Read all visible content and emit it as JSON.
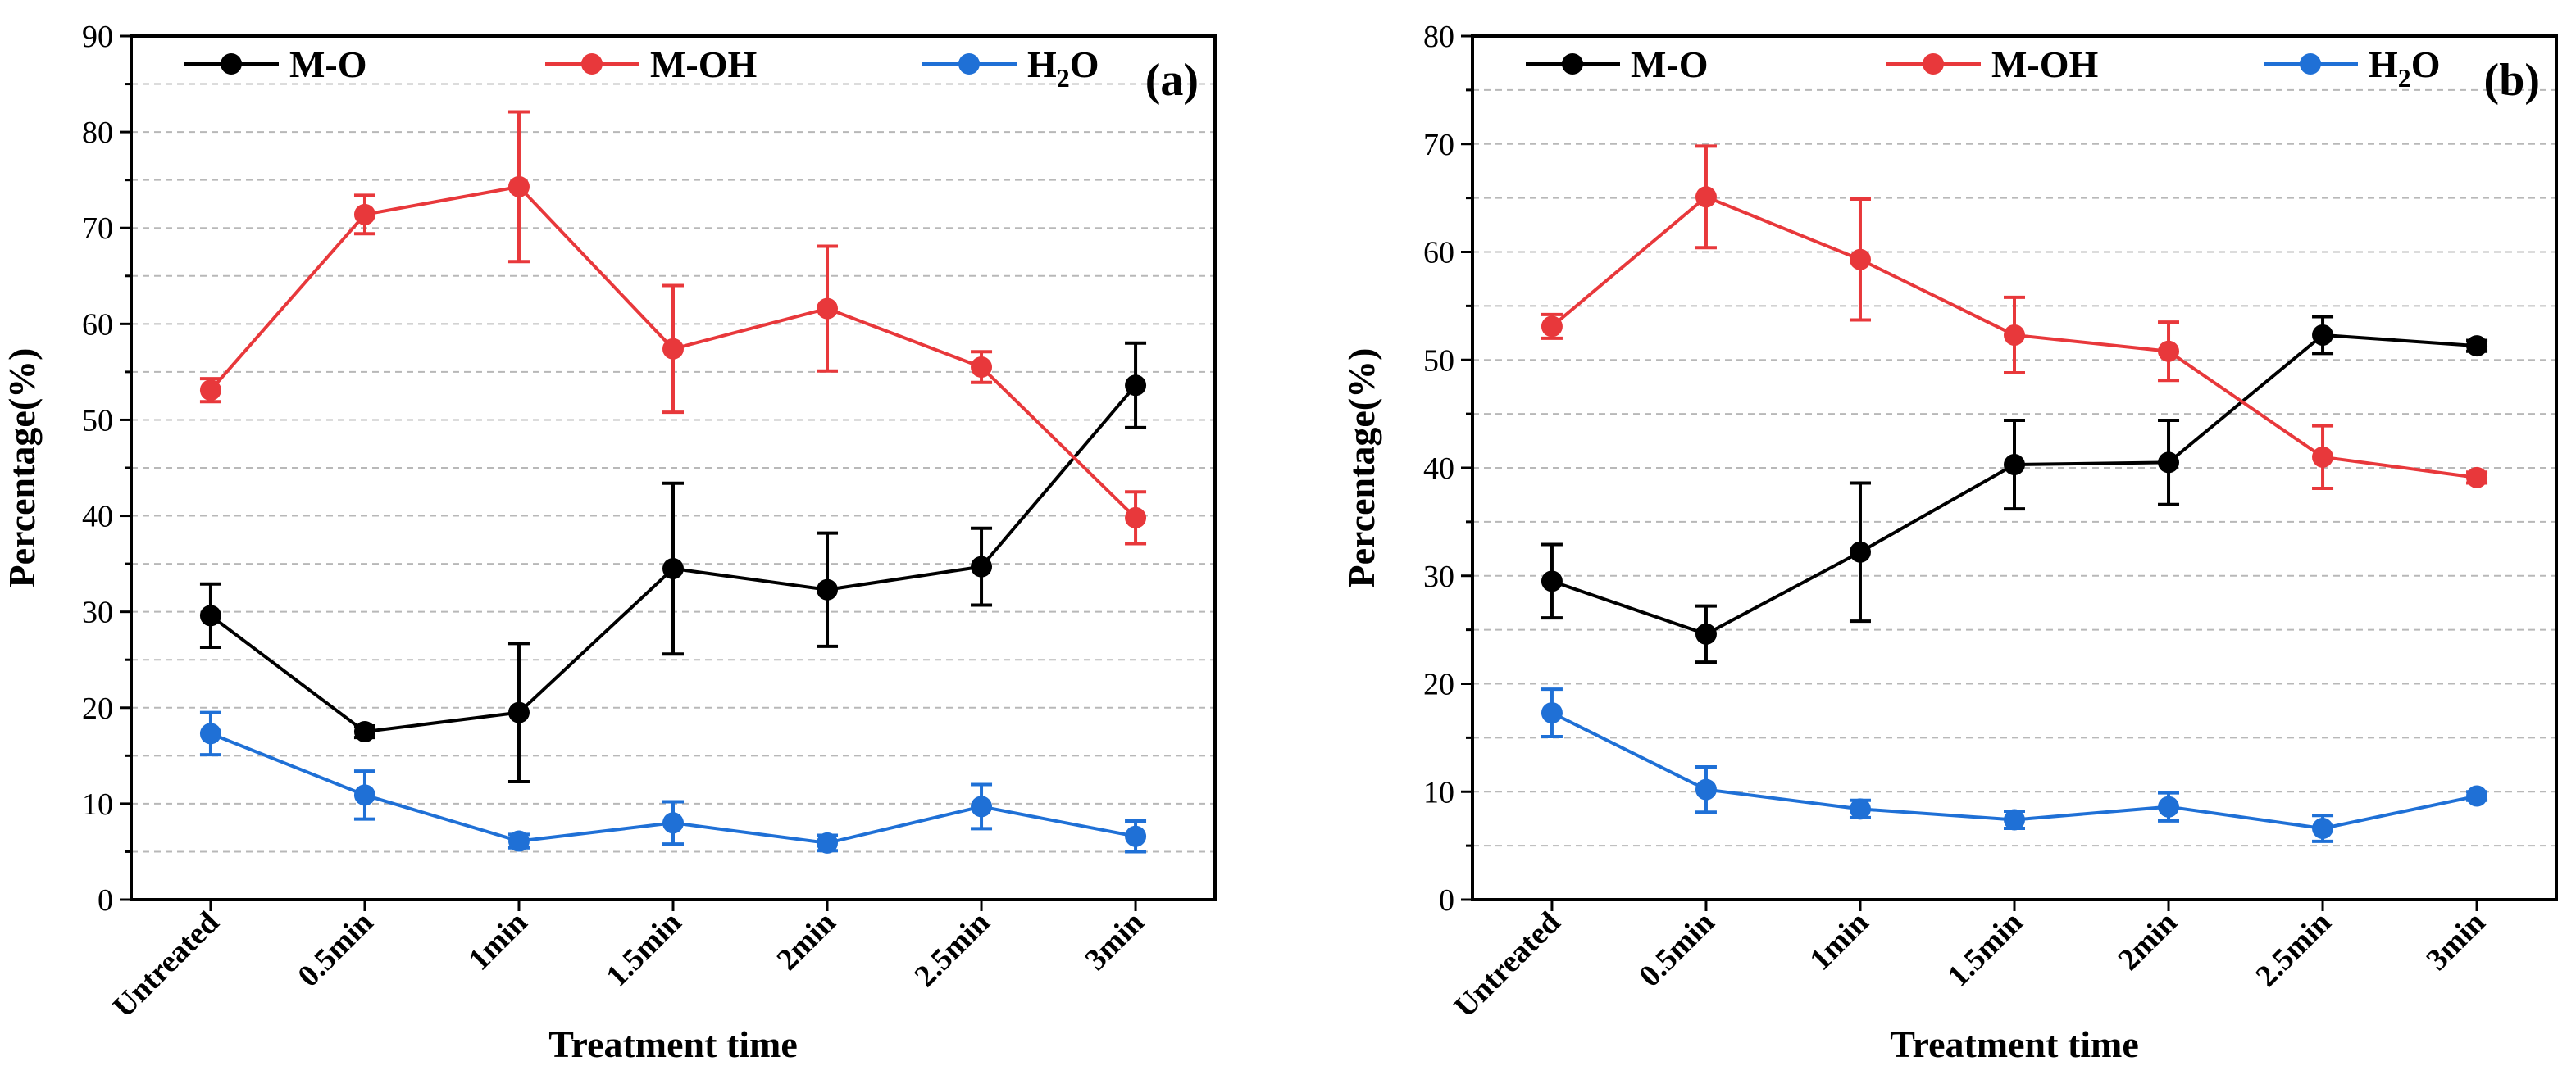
{
  "chart_data": [
    {
      "type": "line",
      "panel_label": "(a)",
      "categories": [
        "Untreated",
        "0.5min",
        "1min",
        "1.5min",
        "2min",
        "2.5min",
        "3min"
      ],
      "xlabel": "Treatment time",
      "ylabel": "Percentage(%)",
      "ylim": [
        0,
        90
      ],
      "yticks": [
        0,
        10,
        20,
        30,
        40,
        50,
        60,
        70,
        80,
        90
      ],
      "ytick_labels": [
        "0",
        "10",
        "20",
        "30",
        "40",
        "50",
        "60",
        "70",
        "80",
        "90"
      ],
      "grid": true,
      "legend_position": "top",
      "series": [
        {
          "name": "M-O",
          "color": "#000000",
          "values": [
            29.6,
            17.5,
            19.5,
            34.5,
            32.3,
            34.7,
            53.6
          ],
          "errors": [
            3.3,
            0.6,
            7.2,
            8.9,
            5.9,
            4.0,
            4.4
          ]
        },
        {
          "name": "M-OH",
          "color": "#e8383b",
          "values": [
            53.1,
            71.4,
            74.3,
            57.4,
            61.6,
            55.5,
            39.8
          ],
          "errors": [
            1.2,
            2.0,
            7.8,
            6.6,
            6.5,
            1.6,
            2.7
          ]
        },
        {
          "name": "H2O",
          "color": "#1f70d6",
          "values": [
            17.3,
            10.9,
            6.1,
            8.0,
            5.9,
            9.7,
            6.6
          ],
          "errors": [
            2.2,
            2.5,
            0.7,
            2.2,
            0.8,
            2.3,
            1.6
          ]
        }
      ]
    },
    {
      "type": "line",
      "panel_label": "(b)",
      "categories": [
        "Untreated",
        "0.5min",
        "1min",
        "1.5min",
        "2min",
        "2.5min",
        "3min"
      ],
      "xlabel": "Treatment time",
      "ylabel": "Percentage(%)",
      "ylim": [
        0,
        80
      ],
      "yticks": [
        0,
        10,
        20,
        30,
        40,
        50,
        60,
        70,
        80
      ],
      "ytick_labels": [
        "0",
        "10",
        "20",
        "30",
        "40",
        "50",
        "60",
        "70",
        "80"
      ],
      "grid": true,
      "legend_position": "top",
      "series": [
        {
          "name": "M-O",
          "color": "#000000",
          "values": [
            29.5,
            24.6,
            32.2,
            40.3,
            40.5,
            52.3,
            51.3
          ],
          "errors": [
            3.4,
            2.6,
            6.4,
            4.1,
            3.9,
            1.7,
            0.5
          ]
        },
        {
          "name": "M-OH",
          "color": "#e8383b",
          "values": [
            53.1,
            65.1,
            59.3,
            52.3,
            50.8,
            41.0,
            39.1
          ],
          "errors": [
            1.1,
            4.7,
            5.6,
            3.5,
            2.7,
            2.9,
            0.5
          ]
        },
        {
          "name": "H2O",
          "color": "#1f70d6",
          "values": [
            17.3,
            10.2,
            8.4,
            7.4,
            8.6,
            6.6,
            9.6
          ],
          "errors": [
            2.2,
            2.1,
            0.8,
            0.8,
            1.3,
            1.2,
            0.4
          ]
        }
      ]
    }
  ]
}
